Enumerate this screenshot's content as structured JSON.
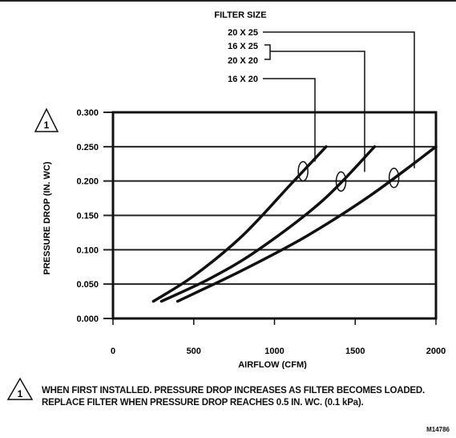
{
  "chart_data": {
    "type": "line",
    "xlabel": "AIRFLOW (CFM)",
    "ylabel": "PRESSURE DROP (IN. WC)",
    "xlim": [
      0,
      2000
    ],
    "ylim": [
      0,
      0.3
    ],
    "x_ticks": [
      "0",
      "500",
      "1000",
      "1500",
      "2000"
    ],
    "y_ticks": [
      "0.000",
      "0.050",
      "0.100",
      "0.150",
      "0.200",
      "0.250",
      "0.300"
    ],
    "grid": "horizontal",
    "legend_title": "FILTER SIZE",
    "legend_entries": [
      "20 X 25",
      "16 X 25",
      "20 X 20",
      "16 X 20"
    ],
    "series": [
      {
        "name": "16 X 20",
        "x": [
          250,
          500,
          800,
          1100,
          1320
        ],
        "y": [
          0.025,
          0.062,
          0.12,
          0.195,
          0.25
        ]
      },
      {
        "name": "16 X 25 / 20 X 20",
        "x": [
          300,
          600,
          900,
          1300,
          1620
        ],
        "y": [
          0.025,
          0.058,
          0.1,
          0.172,
          0.25
        ]
      },
      {
        "name": "20 X 25",
        "x": [
          400,
          800,
          1200,
          1600,
          2000
        ],
        "y": [
          0.025,
          0.07,
          0.12,
          0.18,
          0.25
        ]
      }
    ],
    "annotation_marker": "1"
  },
  "note": {
    "marker": "1",
    "text": "WHEN FIRST INSTALLED. PRESSURE DROP INCREASES AS FILTER BECOMES LOADED. REPLACE FILTER WHEN PRESSURE DROP REACHES 0.5 IN. WC. (0.1 kPa)."
  },
  "figure_id": "M14786"
}
